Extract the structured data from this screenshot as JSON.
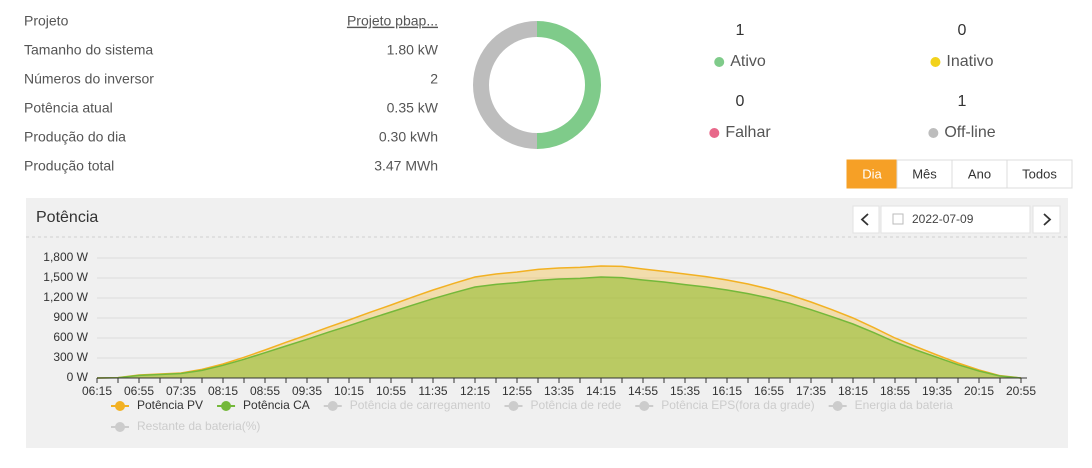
{
  "info": [
    {
      "label": "Projeto",
      "value": "Projeto pbap...",
      "link": true
    },
    {
      "label": "Tamanho do sistema",
      "value": "1.80 kW"
    },
    {
      "label": "Números do inversor",
      "value": "2"
    },
    {
      "label": "Potência atual",
      "value": "0.35 kW"
    },
    {
      "label": "Produção do dia",
      "value": "0.30 kWh"
    },
    {
      "label": "Produção total",
      "value": "3.47 MWh"
    }
  ],
  "status": [
    {
      "label": "Ativo",
      "count": 1,
      "color": "#7fcb8a"
    },
    {
      "label": "Inativo",
      "count": 0,
      "color": "#f2d21b"
    },
    {
      "label": "Falhar",
      "count": 0,
      "color": "#e8688a"
    },
    {
      "label": "Off-line",
      "count": 1,
      "color": "#bdbdbd"
    }
  ],
  "tabs": [
    "Dia",
    "Mês",
    "Ano",
    "Todos"
  ],
  "active_tab": 0,
  "date": "2022-07-09",
  "chart_data": {
    "type": "area",
    "title": "Potência",
    "x": [
      "06:15",
      null,
      "06:55",
      null,
      "07:35",
      null,
      "08:15",
      null,
      "08:55",
      null,
      "09:35",
      null,
      "10:15",
      null,
      "10:55",
      null,
      "11:35",
      null,
      "12:15",
      null,
      "12:55",
      null,
      "13:35",
      null,
      "14:15",
      null,
      "14:55",
      null,
      "15:35",
      null,
      "16:15",
      null,
      "16:55",
      null,
      "17:35",
      null,
      "18:15",
      null,
      "18:55",
      null,
      "19:35",
      null,
      "20:15",
      null,
      "20:55"
    ],
    "series": [
      {
        "name": "Potência PV",
        "color": "#f2b123",
        "fill": "rgba(245,190,60,0.38)",
        "values": [
          0,
          5,
          45,
          60,
          75,
          130,
          210,
          310,
          420,
          535,
          645,
          760,
          870,
          985,
          1095,
          1210,
          1320,
          1420,
          1515,
          1560,
          1590,
          1630,
          1650,
          1660,
          1680,
          1675,
          1635,
          1600,
          1560,
          1520,
          1470,
          1410,
          1335,
          1245,
          1140,
          1025,
          900,
          755,
          600,
          470,
          345,
          225,
          120,
          35,
          0
        ]
      },
      {
        "name": "Potência CA",
        "color": "#74b83a",
        "fill": "rgba(140,185,40,0.55)",
        "values": [
          0,
          3,
          40,
          52,
          68,
          115,
          190,
          280,
          380,
          480,
          580,
          685,
          785,
          890,
          990,
          1090,
          1190,
          1280,
          1365,
          1405,
          1430,
          1465,
          1485,
          1495,
          1515,
          1505,
          1470,
          1440,
          1400,
          1365,
          1320,
          1265,
          1200,
          1120,
          1025,
          920,
          810,
          680,
          540,
          420,
          310,
          200,
          105,
          30,
          0
        ]
      }
    ],
    "inactive_series": [
      {
        "name": "Potência de carregamento",
        "color": "#cccccc"
      },
      {
        "name": "Potência de rede",
        "color": "#cccccc"
      },
      {
        "name": "Potência EPS(fora da grade)",
        "color": "#cccccc"
      },
      {
        "name": "Energia da bateria",
        "color": "#cccccc"
      },
      {
        "name": "Restante da bateria(%)",
        "color": "#cccccc"
      }
    ],
    "ylim": [
      0,
      1800
    ],
    "yticks": [
      {
        "value": 0,
        "label": "0 W"
      },
      {
        "value": 300,
        "label": "300 W"
      },
      {
        "value": 600,
        "label": "600 W"
      },
      {
        "value": 900,
        "label": "900 W"
      },
      {
        "value": 1200,
        "label": "1,200 W"
      },
      {
        "value": 1500,
        "label": "1,500 W"
      },
      {
        "value": 1800,
        "label": "1,800 W"
      }
    ],
    "grid": true
  }
}
